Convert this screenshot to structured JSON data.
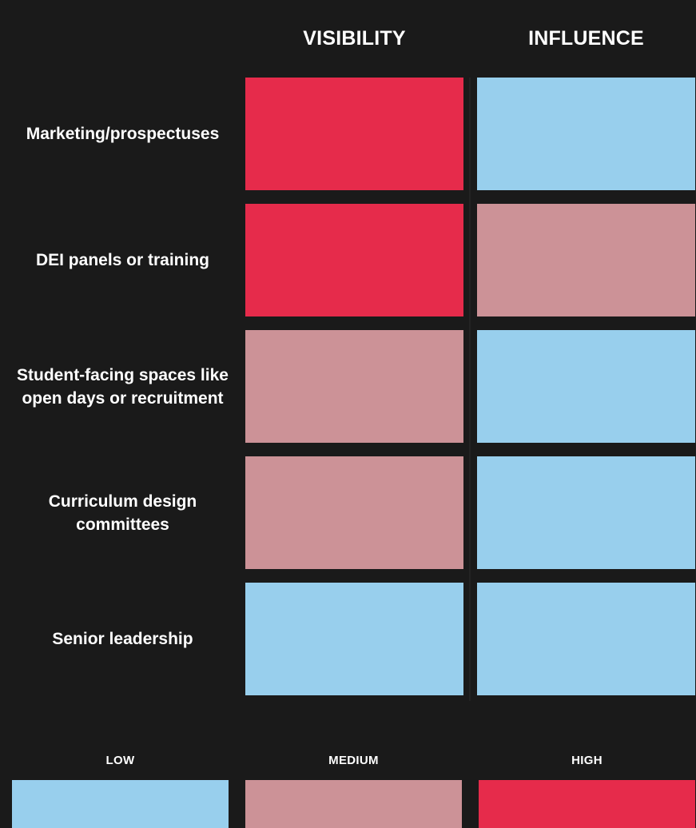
{
  "chart_data": {
    "type": "heatmap",
    "columns": [
      "VISIBILITY",
      "INFLUENCE"
    ],
    "rows": [
      {
        "label": "Marketing/prospectuses",
        "values": [
          "HIGH",
          "LOW"
        ]
      },
      {
        "label": "DEI panels or training",
        "values": [
          "HIGH",
          "MEDIUM"
        ]
      },
      {
        "label": "Student-facing spaces like open days or recruitment",
        "values": [
          "MEDIUM",
          "LOW"
        ]
      },
      {
        "label": "Curriculum design committees",
        "values": [
          "MEDIUM",
          "LOW"
        ]
      },
      {
        "label": "Senior leadership",
        "values": [
          "LOW",
          "LOW"
        ]
      }
    ],
    "scale": [
      {
        "level": "LOW",
        "label": "LOW",
        "color": "#98cfed"
      },
      {
        "level": "MEDIUM",
        "label": "MEDIUM",
        "color": "#cc9297"
      },
      {
        "level": "HIGH",
        "label": "HIGH",
        "color": "#e62b4b"
      }
    ]
  },
  "colors": {
    "background": "#1a1a1a",
    "text": "#ffffff"
  }
}
